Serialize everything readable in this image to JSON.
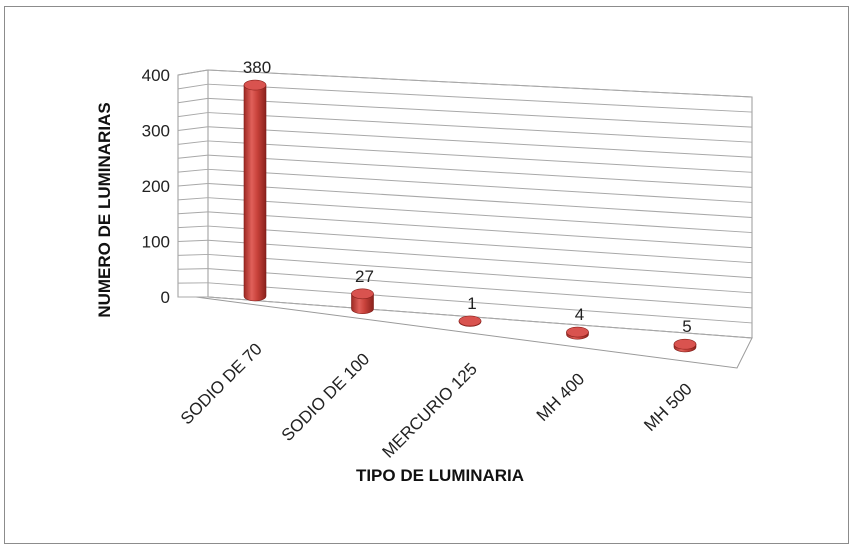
{
  "chart_data": {
    "type": "bar",
    "style": "3d-cylinder",
    "categories": [
      "SODIO DE 70",
      "SODIO DE 100",
      "MERCURIO 125",
      "MH 400",
      "MH 500"
    ],
    "values": [
      380,
      27,
      1,
      4,
      5
    ],
    "data_labels": [
      "380",
      "27",
      "1",
      "4",
      "5"
    ],
    "title": "",
    "xlabel": "TIPO DE LUMINARIA",
    "ylabel": "NUMERO DE LUMINARIAS",
    "ylim": [
      0,
      400
    ],
    "yticks": [
      "0",
      "100",
      "200",
      "300",
      "400"
    ],
    "grid": true,
    "legend": "none",
    "bar_color": "#c0392b"
  }
}
